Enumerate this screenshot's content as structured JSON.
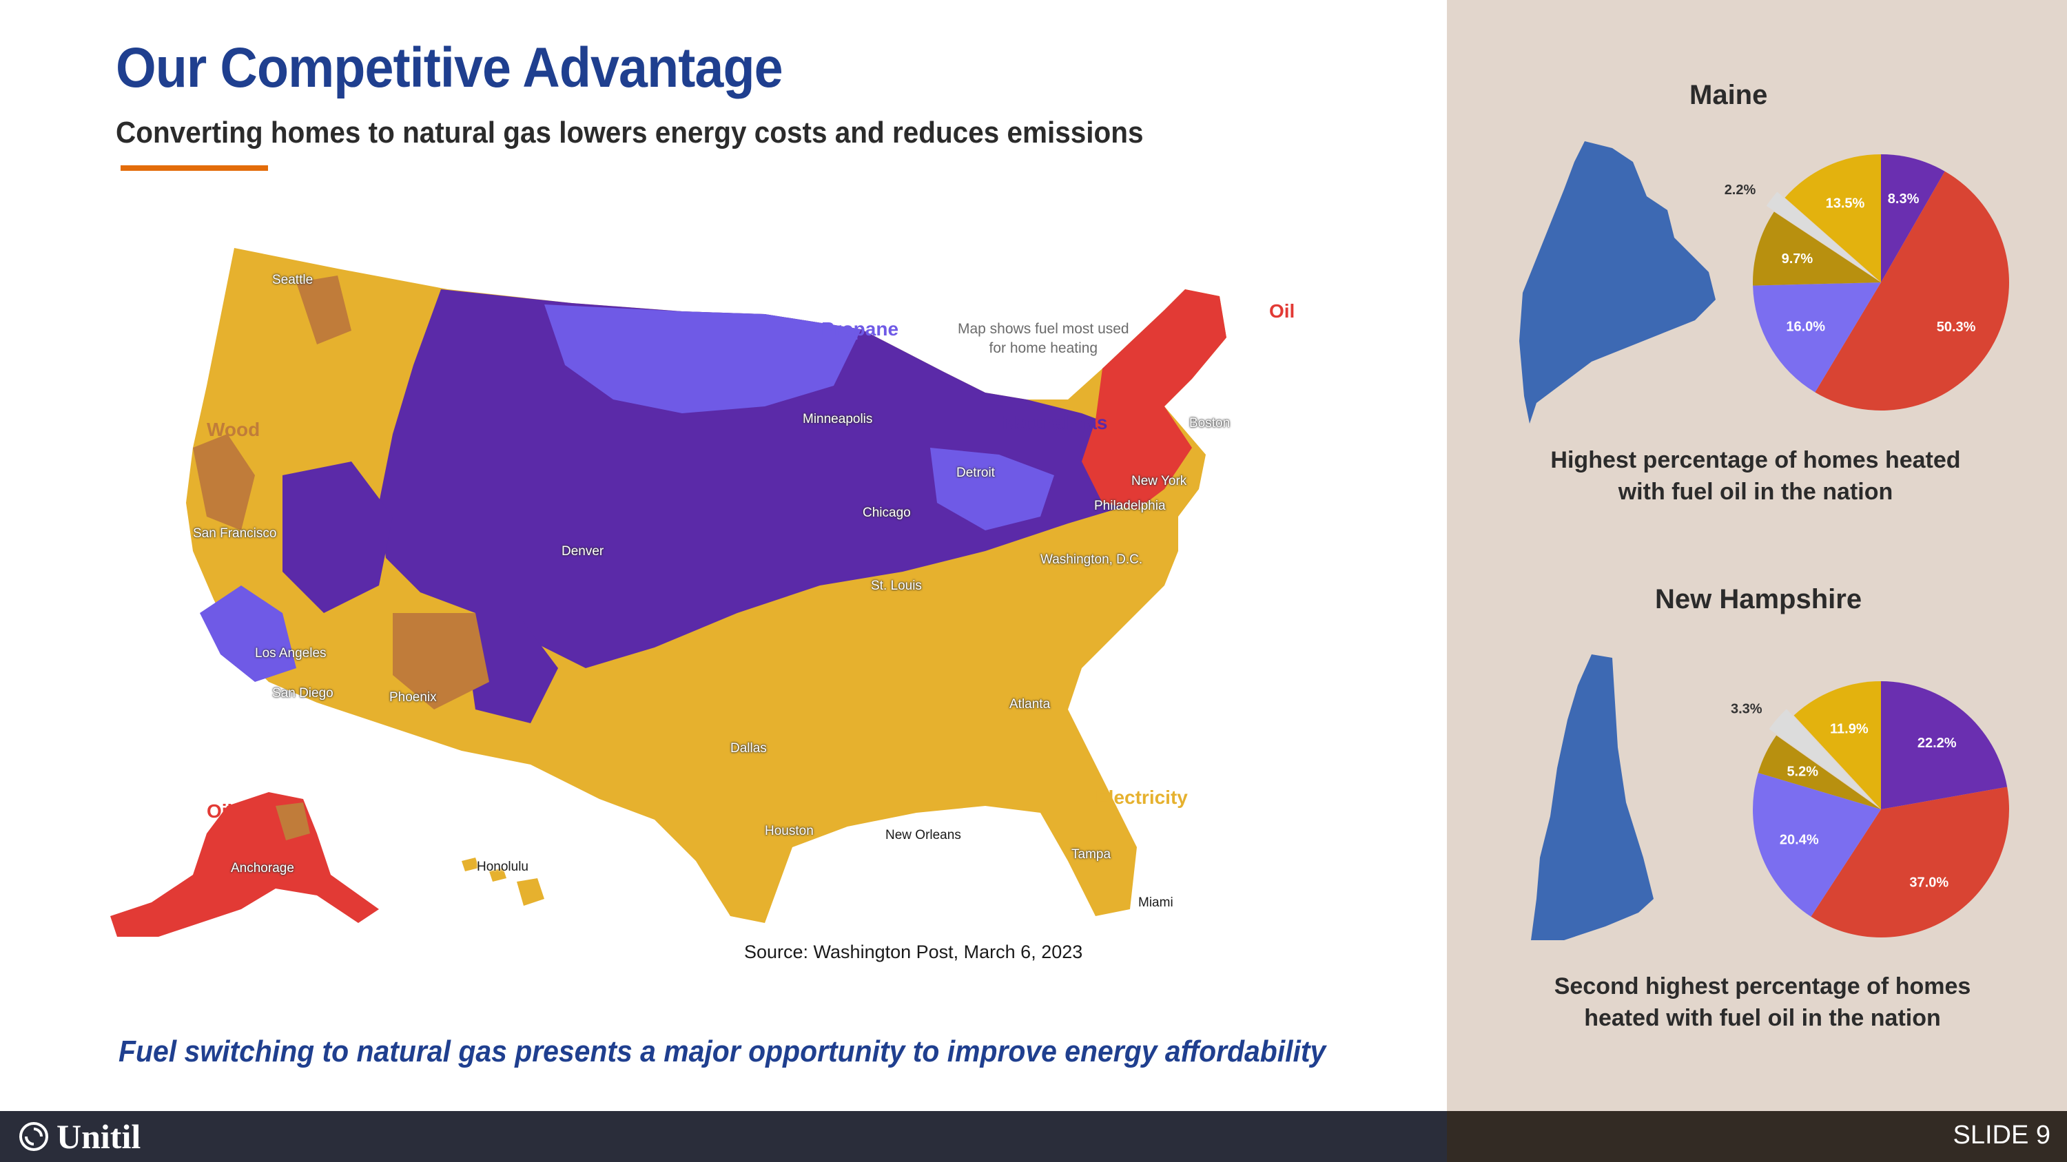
{
  "slide": {
    "title": "Our Competitive Advantage",
    "subtitle": "Converting homes to natural gas lowers energy costs and reduces emissions",
    "tagline": "Fuel switching to natural gas presents a major opportunity to improve energy affordability",
    "source": "Source: Washington Post, March 6, 2023",
    "slide_number": "SLIDE 9",
    "logo_text": "Unitil"
  },
  "map": {
    "note_line1": "Map shows fuel most used",
    "note_line2": "for home heating",
    "fuel_labels": {
      "propane": "Propane",
      "natural_gas": "Natural gas",
      "oil": "Oil",
      "oil_alaska": "Oil",
      "wood": "Wood",
      "electricity": "Electricity"
    },
    "cities": [
      "Seattle",
      "San Francisco",
      "Los Angeles",
      "San Diego",
      "Phoenix",
      "Denver",
      "Minneapolis",
      "Chicago",
      "Detroit",
      "St. Louis",
      "Dallas",
      "Houston",
      "New Orleans",
      "Atlanta",
      "Tampa",
      "Miami",
      "Washington, D.C.",
      "Philadelphia",
      "New York",
      "Boston",
      "Anchorage",
      "Honolulu"
    ],
    "colors": {
      "natural_gas": "#5b2aa8",
      "propane": "#6f5ae6",
      "electricity": "#e6b12e",
      "oil": "#e23a35",
      "wood": "#c07c3a"
    }
  },
  "maine": {
    "title": "Maine",
    "caption_line1": "Highest percentage of homes heated",
    "caption_line2": "with fuel oil in the nation"
  },
  "new_hampshire": {
    "title": "New Hampshire",
    "caption_line1": "Second highest percentage of homes",
    "caption_line2": "heated with fuel oil in the nation"
  },
  "chart_data": [
    {
      "type": "pie",
      "slices": [
        {
          "label": "8.3%",
          "value": 8.3,
          "color": "#6a2fb0"
        },
        {
          "label": "50.3%",
          "value": 50.3,
          "color": "#d94433"
        },
        {
          "label": "16.0%",
          "value": 16.0,
          "color": "#7b6ef0"
        },
        {
          "label": "9.7%",
          "value": 9.7,
          "color": "#b8900f"
        },
        {
          "label": "2.2%",
          "value": 2.2,
          "color": "#dcdcdc"
        },
        {
          "label": "13.5%",
          "value": 13.5,
          "color": "#e3b20e"
        }
      ]
    },
    {
      "type": "pie",
      "slices": [
        {
          "label": "22.2%",
          "value": 22.2,
          "color": "#6a2fb0"
        },
        {
          "label": "37.0%",
          "value": 37.0,
          "color": "#d94433"
        },
        {
          "label": "20.4%",
          "value": 20.4,
          "color": "#7b6ef0"
        },
        {
          "label": "5.2%",
          "value": 5.2,
          "color": "#b8900f"
        },
        {
          "label": "3.3%",
          "value": 3.3,
          "color": "#dcdcdc"
        },
        {
          "label": "11.9%",
          "value": 11.9,
          "color": "#e3b20e"
        }
      ]
    }
  ]
}
